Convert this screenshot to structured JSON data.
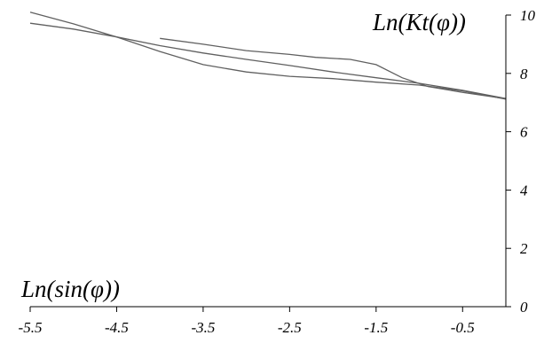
{
  "chart_data": {
    "type": "line",
    "xlabel": "Ln(sin(φ))",
    "ylabel": "Ln(Kt(φ))",
    "xlim": [
      -5.5,
      0.0
    ],
    "ylim": [
      0,
      10
    ],
    "x_ticks": [
      "-5.5",
      "-4.5",
      "-3.5",
      "-2.5",
      "-1.5",
      "-0.5"
    ],
    "y_ticks": [
      "0",
      "2",
      "4",
      "6",
      "8",
      "10"
    ],
    "grid": false,
    "line_color": "#606060",
    "series": [
      {
        "x": [
          -5.5,
          -5.0,
          -4.5,
          -4.0,
          -3.5,
          -3.0,
          -2.5,
          -2.0,
          -1.5,
          -1.0,
          -0.5,
          0.0
        ],
        "y": [
          10.1,
          9.7,
          9.25,
          8.75,
          8.3,
          8.05,
          7.9,
          7.82,
          7.7,
          7.6,
          7.4,
          7.12
        ]
      },
      {
        "x": [
          -5.5,
          -5.0,
          -4.5,
          -4.0,
          -3.5,
          -3.0,
          -2.5,
          -2.0,
          -1.5,
          -1.0,
          -0.5,
          0.0
        ],
        "y": [
          9.72,
          9.52,
          9.25,
          8.95,
          8.7,
          8.48,
          8.27,
          8.05,
          7.85,
          7.66,
          7.42,
          7.14
        ]
      },
      {
        "x": [
          -4.0,
          -3.5,
          -3.0,
          -2.5,
          -2.2,
          -1.8,
          -1.5,
          -1.2,
          -0.9,
          -0.5,
          0.0
        ],
        "y": [
          9.2,
          9.0,
          8.78,
          8.65,
          8.55,
          8.48,
          8.3,
          7.85,
          7.55,
          7.35,
          7.13
        ]
      }
    ]
  }
}
